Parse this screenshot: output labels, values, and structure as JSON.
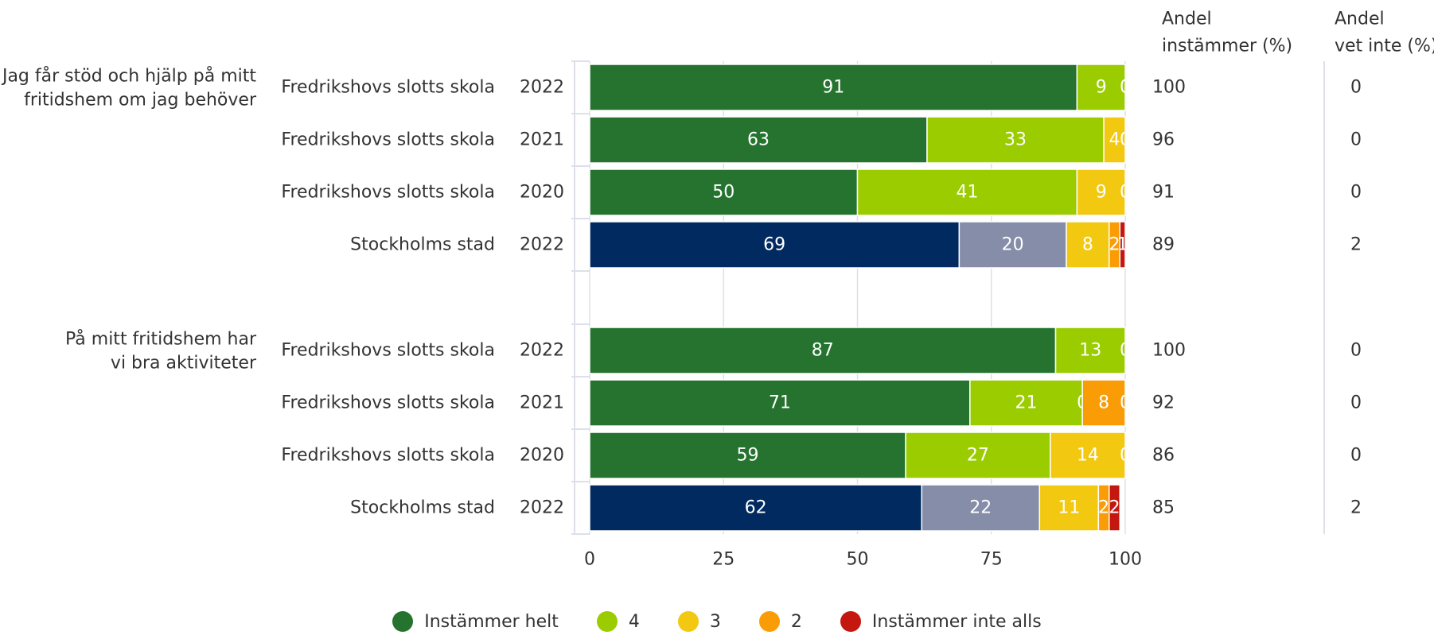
{
  "colors": {
    "school": [
      "#25732f",
      "#9acc00",
      "#f2c811",
      "#f99c06",
      "#c3170f"
    ],
    "city": [
      "#012a60",
      "#858da8",
      "#f2c811",
      "#f99c06",
      "#c3170f"
    ],
    "grid": "#dde0ea",
    "text": "#333333",
    "bar_label": "#ffffff"
  },
  "chart_data": {
    "type": "bar",
    "orientation": "horizontal",
    "stacked": true,
    "xlim": [
      0,
      100
    ],
    "x_ticks": [
      "0",
      "25",
      "50",
      "75",
      "100"
    ],
    "grid": true,
    "legend_position": "bottom-center",
    "column_headers": {
      "share_agree_line1": "Andel",
      "share_agree_line2": "instämmer (%)",
      "share_dont_know_line1": "Andel",
      "share_dont_know_line2": "vet inte (%)"
    },
    "legend": [
      {
        "label": "Instämmer helt",
        "color": "#25732f"
      },
      {
        "label": "4",
        "color": "#9acc00"
      },
      {
        "label": "3",
        "color": "#f2c811"
      },
      {
        "label": "2",
        "color": "#f99c06"
      },
      {
        "label": "Instämmer inte alls",
        "color": "#c3170f"
      }
    ],
    "groups": [
      {
        "question_lines": [
          "Jag får stöd och hjälp på mitt",
          "fritidshem om jag behöver"
        ],
        "rows": [
          {
            "unit": "Fredrikshovs slotts skola",
            "year": "2022",
            "palette": "school",
            "values": [
              91,
              9,
              0,
              0,
              0
            ],
            "labels": [
              "91",
              "9",
              "0",
              "",
              ""
            ],
            "share_agree": "100",
            "share_dont_know": "0"
          },
          {
            "unit": "Fredrikshovs slotts skola",
            "year": "2021",
            "palette": "school",
            "values": [
              63,
              33,
              4,
              0,
              0
            ],
            "labels": [
              "63",
              "33",
              "4",
              "0",
              ""
            ],
            "share_agree": "96",
            "share_dont_know": "0"
          },
          {
            "unit": "Fredrikshovs slotts skola",
            "year": "2020",
            "palette": "school",
            "values": [
              50,
              41,
              9,
              0,
              0
            ],
            "labels": [
              "50",
              "41",
              "9",
              "0",
              ""
            ],
            "share_agree": "91",
            "share_dont_know": "0"
          },
          {
            "unit": "Stockholms stad",
            "year": "2022",
            "palette": "city",
            "values": [
              69,
              20,
              8,
              2,
              1
            ],
            "labels": [
              "69",
              "20",
              "8",
              "2",
              "1"
            ],
            "share_agree": "89",
            "share_dont_know": "2"
          }
        ]
      },
      {
        "question_lines": [
          "På mitt fritidshem har",
          "vi bra aktiviteter"
        ],
        "rows": [
          {
            "unit": "Fredrikshovs slotts skola",
            "year": "2022",
            "palette": "school",
            "values": [
              87,
              13,
              0,
              0,
              0
            ],
            "labels": [
              "87",
              "13",
              "0",
              "",
              ""
            ],
            "share_agree": "100",
            "share_dont_know": "0"
          },
          {
            "unit": "Fredrikshovs slotts skola",
            "year": "2021",
            "palette": "school",
            "values": [
              71,
              21,
              0,
              8,
              0
            ],
            "labels": [
              "71",
              "21",
              "0",
              "8",
              "0"
            ],
            "share_agree": "92",
            "share_dont_know": "0"
          },
          {
            "unit": "Fredrikshovs slotts skola",
            "year": "2020",
            "palette": "school",
            "values": [
              59,
              27,
              14,
              0,
              0
            ],
            "labels": [
              "59",
              "27",
              "14",
              "0",
              ""
            ],
            "share_agree": "86",
            "share_dont_know": "0"
          },
          {
            "unit": "Stockholms stad",
            "year": "2022",
            "palette": "city",
            "values": [
              62,
              22,
              11,
              2,
              2
            ],
            "labels": [
              "62",
              "22",
              "11",
              "2",
              "2"
            ],
            "share_agree": "85",
            "share_dont_know": "2"
          }
        ]
      }
    ]
  }
}
